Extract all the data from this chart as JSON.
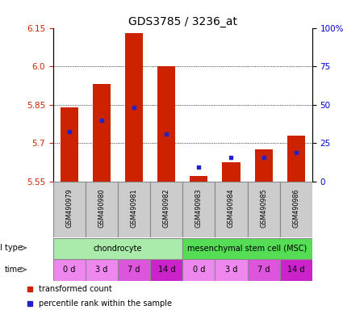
{
  "title": "GDS3785 / 3236_at",
  "samples": [
    "GSM490979",
    "GSM490980",
    "GSM490981",
    "GSM490982",
    "GSM490983",
    "GSM490984",
    "GSM490985",
    "GSM490986"
  ],
  "bar_bottoms": [
    5.55,
    5.55,
    5.55,
    5.55,
    5.55,
    5.55,
    5.55,
    5.55
  ],
  "bar_tops": [
    5.84,
    5.93,
    6.13,
    6.0,
    5.57,
    5.625,
    5.675,
    5.73
  ],
  "percentile_values": [
    5.745,
    5.79,
    5.84,
    5.735,
    5.605,
    5.645,
    5.645,
    5.662
  ],
  "ylim": [
    5.55,
    6.15
  ],
  "yticks_left": [
    5.55,
    5.7,
    5.85,
    6.0,
    6.15
  ],
  "yticks_right_vals": [
    5.55,
    5.7,
    5.85,
    6.0,
    6.15
  ],
  "yticks_right_labels": [
    "0",
    "25",
    "50",
    "75",
    "100%"
  ],
  "bar_color": "#cc2200",
  "percentile_color": "#2222cc",
  "cell_types": [
    {
      "label": "chondrocyte",
      "start": 0,
      "end": 4,
      "color": "#aaeaaa"
    },
    {
      "label": "mesenchymal stem cell (MSC)",
      "start": 4,
      "end": 8,
      "color": "#55dd55"
    }
  ],
  "times": [
    "0 d",
    "3 d",
    "7 d",
    "14 d",
    "0 d",
    "3 d",
    "7 d",
    "14 d"
  ],
  "time_colors": [
    "#ee88ee",
    "#ee88ee",
    "#dd55dd",
    "#cc22cc",
    "#ee88ee",
    "#ee88ee",
    "#dd55dd",
    "#cc22cc"
  ],
  "cell_type_label": "cell type",
  "time_label": "time",
  "legend_bar_label": "transformed count",
  "legend_pct_label": "percentile rank within the sample",
  "label_color_left": "#cc2200",
  "label_color_right": "#0000cc"
}
